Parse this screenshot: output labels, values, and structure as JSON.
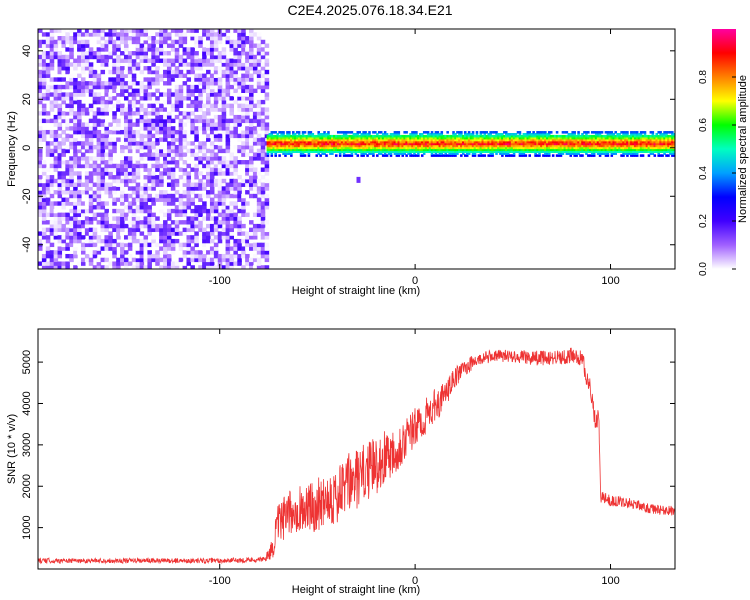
{
  "chart_data": [
    {
      "type": "heatmap",
      "title": "C2E4.2025.076.18.34.E21",
      "xlabel": "Height of straight line (km)",
      "ylabel": "Frequency (Hz)",
      "xlim": [
        -193,
        133
      ],
      "ylim": [
        -50,
        49
      ],
      "xticks": [
        -100,
        0,
        100
      ],
      "yticks": [
        -40,
        -20,
        0,
        20,
        40
      ],
      "xtick_labels": [
        "-100",
        "0",
        "100"
      ],
      "ytick_labels": [
        "-40",
        "-20",
        "0",
        "20",
        "40"
      ],
      "colorbar": {
        "label": "Normalized spectral amplitude",
        "range": [
          0.0,
          1.0
        ],
        "ticks": [
          0.0,
          0.2,
          0.4,
          0.6,
          0.8
        ],
        "tick_labels": [
          "0.0",
          "0.2",
          "0.4",
          "0.6",
          "0.8"
        ],
        "colormap": [
          "#ffffff",
          "#a060ff",
          "#4000ff",
          "#0000ff",
          "#00a0ff",
          "#00ffc0",
          "#00ff00",
          "#ffff00",
          "#ff8000",
          "#ff0000",
          "#ff00a0"
        ]
      },
      "regions": [
        {
          "name": "noise",
          "x_range": [
            -193,
            -76
          ],
          "freq_range": [
            -50,
            49
          ],
          "amplitude_range": [
            0.0,
            0.2
          ]
        },
        {
          "name": "signal-band",
          "x_range": [
            -76,
            133
          ],
          "frequency": 1.5,
          "bandwidth": 5,
          "amplitude_range": [
            0.3,
            1.0
          ]
        }
      ],
      "features": [
        {
          "label": "isolated speck",
          "x": -30,
          "frequency": -14,
          "amplitude": 0.15
        }
      ]
    },
    {
      "type": "line",
      "xlabel": "Height of straight line (km)",
      "ylabel": "SNR (10 * v/v)",
      "xlim": [
        -193,
        133
      ],
      "ylim": [
        0,
        5800
      ],
      "xticks": [
        -100,
        0,
        100
      ],
      "yticks": [
        1000,
        2000,
        3000,
        4000,
        5000
      ],
      "xtick_labels": [
        "-100",
        "0",
        "100"
      ],
      "ytick_labels": [
        "1000",
        "2000",
        "3000",
        "4000",
        "5000"
      ],
      "series": [
        {
          "name": "SNR",
          "color": "#ee3333",
          "x": [
            -193,
            -150,
            -100,
            -77,
            -73,
            -70,
            -65,
            -60,
            -55,
            -50,
            -45,
            -40,
            -35,
            -30,
            -25,
            -20,
            -15,
            -10,
            -5,
            0,
            5,
            10,
            15,
            20,
            25,
            30,
            35,
            40,
            50,
            60,
            70,
            80,
            85,
            87,
            88,
            90,
            92,
            94,
            95,
            100,
            110,
            120,
            133
          ],
          "values": [
            200,
            200,
            200,
            230,
            500,
            1100,
            1300,
            1500,
            1450,
            1550,
            1800,
            1700,
            2050,
            2150,
            2350,
            2500,
            2750,
            2900,
            3150,
            3400,
            3650,
            3950,
            4150,
            4600,
            4850,
            5000,
            5100,
            5150,
            5150,
            5100,
            5100,
            5150,
            5100,
            4850,
            4500,
            4300,
            3650,
            3600,
            1750,
            1650,
            1600,
            1450,
            1400
          ],
          "noise": [
            60,
            60,
            60,
            60,
            250,
            500,
            550,
            600,
            600,
            650,
            700,
            700,
            750,
            750,
            700,
            700,
            650,
            600,
            550,
            500,
            450,
            400,
            350,
            250,
            200,
            180,
            150,
            150,
            150,
            180,
            180,
            200,
            200,
            250,
            250,
            250,
            250,
            250,
            150,
            130,
            130,
            120,
            120
          ]
        }
      ]
    }
  ]
}
